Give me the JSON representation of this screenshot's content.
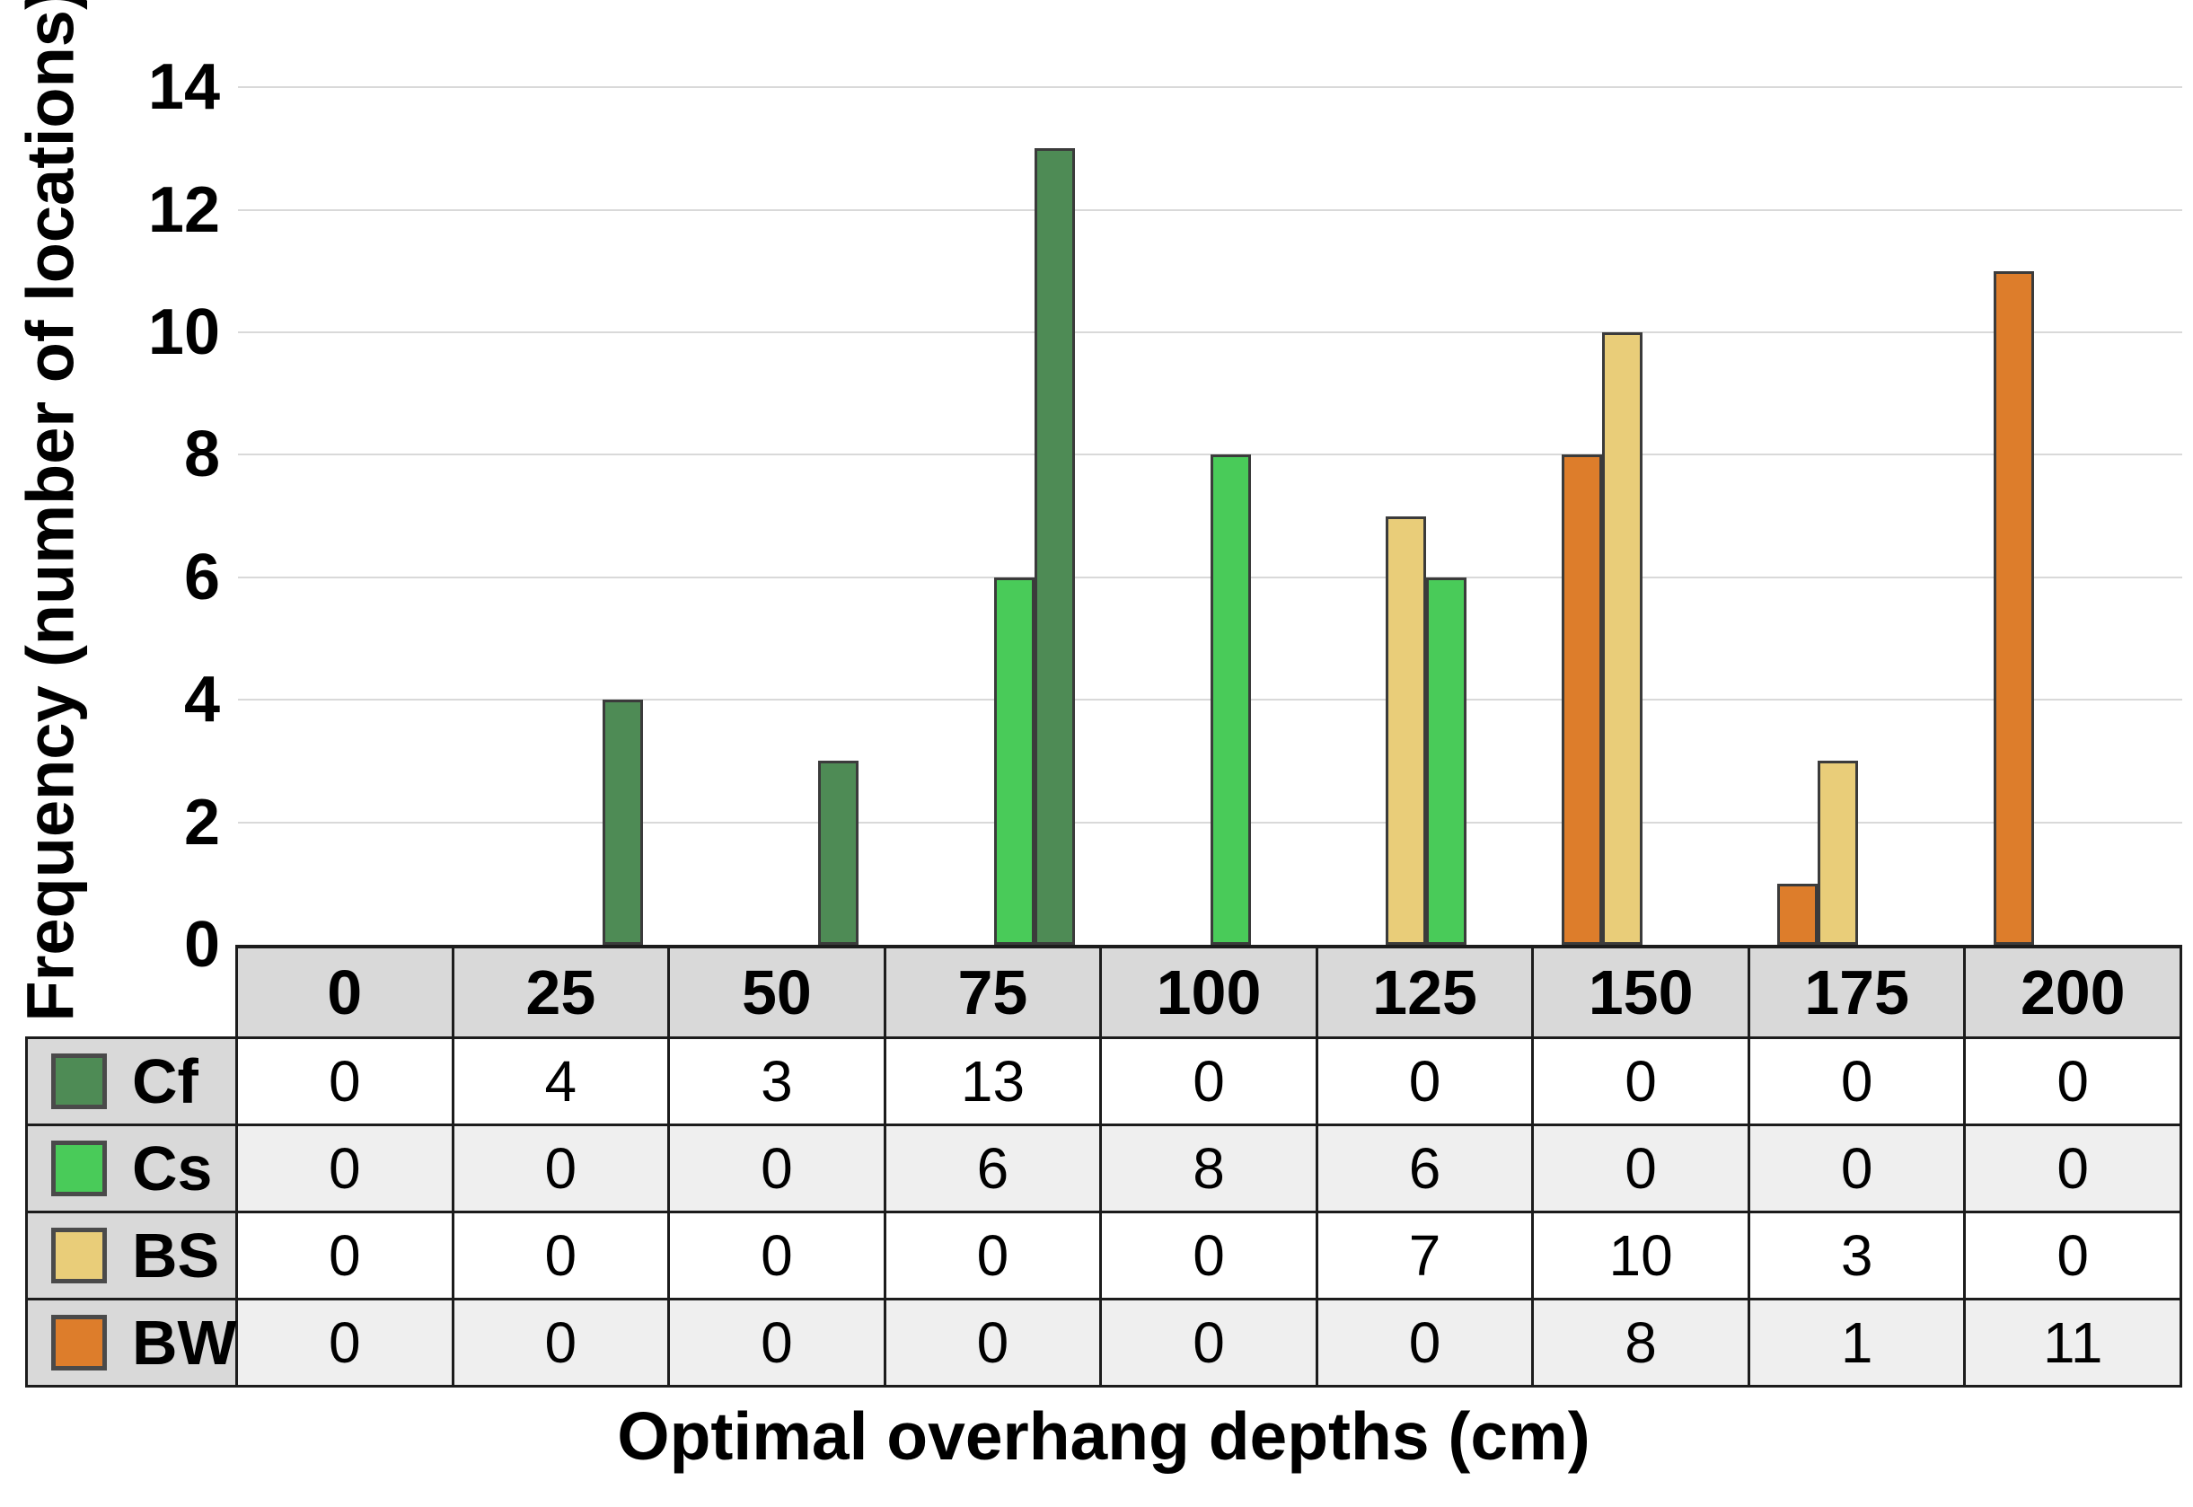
{
  "chart_data": {
    "type": "bar",
    "title": "",
    "xlabel": "Optimal overhang depths (cm)",
    "ylabel": "Frequency (number of locations)",
    "categories": [
      "0",
      "25",
      "50",
      "75",
      "100",
      "125",
      "150",
      "175",
      "200"
    ],
    "series": [
      {
        "name": "Cf",
        "color": "#4e8b55",
        "values": [
          0,
          4,
          3,
          13,
          0,
          0,
          0,
          0,
          0
        ]
      },
      {
        "name": "Cs",
        "color": "#49cb59",
        "values": [
          0,
          0,
          0,
          6,
          8,
          6,
          0,
          0,
          0
        ]
      },
      {
        "name": "BS",
        "color": "#e9cd79",
        "values": [
          0,
          0,
          0,
          0,
          0,
          7,
          10,
          3,
          0
        ]
      },
      {
        "name": "BW",
        "color": "#dd7d2b",
        "values": [
          0,
          0,
          0,
          0,
          0,
          0,
          8,
          1,
          11
        ]
      }
    ],
    "bar_order_left_to_right": [
      "BW",
      "BS",
      "Cs",
      "Cf"
    ],
    "ylim": [
      0,
      14
    ],
    "yticks": [
      0,
      2,
      4,
      6,
      8,
      10,
      12,
      14
    ],
    "grid": true,
    "legend_position": "table-left-column",
    "data_table_shown": true
  },
  "style": {
    "bar_outline_color": "#3b3b3b",
    "gridline_color": "#d9d9d9",
    "table_border_color": "#1c1c1c",
    "table_header_bg": "#d9d9d9",
    "table_alt_row_bg": "#efefef",
    "swatch_border_color": "#4a4a4a",
    "background": "#ffffff"
  }
}
